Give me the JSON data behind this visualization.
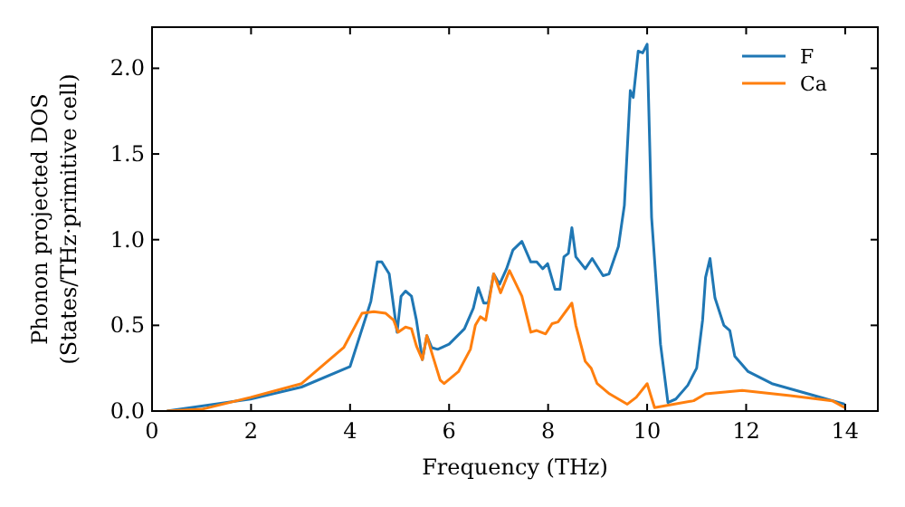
{
  "chart_data": {
    "type": "line",
    "xlabel": "Frequency (THz)",
    "ylabel": "Phonon projected DOS\n(States/THz·primitive cell)",
    "xlim": [
      0,
      14.66
    ],
    "ylim": [
      0,
      2.24
    ],
    "xticks": [
      0,
      2,
      4,
      6,
      8,
      10,
      12,
      14
    ],
    "yticks": [
      {
        "value": 0,
        "label": "0.0"
      },
      {
        "value": 0.5,
        "label": "0.5"
      },
      {
        "value": 1,
        "label": "1.0"
      },
      {
        "value": 1.5,
        "label": "1.5"
      },
      {
        "value": 2,
        "label": "2.0"
      }
    ],
    "legend": "top right",
    "grid": false,
    "series": [
      {
        "name": "F",
        "color": "#1f77b4",
        "x": [
          0.3,
          1.99,
          3.02,
          4.0,
          4.42,
          4.55,
          4.64,
          4.79,
          4.95,
          5.03,
          5.12,
          5.24,
          5.34,
          5.46,
          5.55,
          5.65,
          5.77,
          6.0,
          6.31,
          6.49,
          6.59,
          6.7,
          6.79,
          6.9,
          7.02,
          7.16,
          7.29,
          7.47,
          7.65,
          7.77,
          7.89,
          7.99,
          8.14,
          8.24,
          8.32,
          8.41,
          8.48,
          8.56,
          8.75,
          8.89,
          9.11,
          9.23,
          9.42,
          9.54,
          9.66,
          9.72,
          9.82,
          9.91,
          10.0,
          10.09,
          10.27,
          10.42,
          10.58,
          10.82,
          11.0,
          11.12,
          11.18,
          11.27,
          11.37,
          11.55,
          11.67,
          11.77,
          12.04,
          12.52,
          13.38,
          13.99
        ],
        "values": [
          0,
          0.07,
          0.14,
          0.26,
          0.64,
          0.87,
          0.87,
          0.8,
          0.46,
          0.67,
          0.7,
          0.67,
          0.53,
          0.3,
          0.44,
          0.37,
          0.36,
          0.39,
          0.48,
          0.6,
          0.72,
          0.63,
          0.63,
          0.8,
          0.74,
          0.83,
          0.94,
          0.99,
          0.87,
          0.87,
          0.83,
          0.86,
          0.71,
          0.71,
          0.9,
          0.92,
          1.07,
          0.9,
          0.83,
          0.89,
          0.79,
          0.8,
          0.96,
          1.2,
          1.87,
          1.83,
          2.1,
          2.09,
          2.14,
          1.13,
          0.39,
          0.05,
          0.07,
          0.15,
          0.25,
          0.53,
          0.78,
          0.89,
          0.66,
          0.5,
          0.47,
          0.32,
          0.23,
          0.16,
          0.09,
          0.04
        ]
      },
      {
        "name": "Ca",
        "color": "#ff7f0e",
        "x": [
          0.3,
          1,
          1.99,
          3.02,
          3.87,
          4.24,
          4.48,
          4.72,
          4.88,
          4.97,
          5.12,
          5.24,
          5.34,
          5.46,
          5.55,
          5.65,
          5.82,
          5.9,
          6.19,
          6.43,
          6.53,
          6.63,
          6.74,
          6.82,
          6.9,
          7.04,
          7.22,
          7.47,
          7.65,
          7.77,
          7.95,
          8.08,
          8.2,
          8.48,
          8.56,
          8.75,
          8.87,
          8.99,
          9.24,
          9.6,
          9.78,
          10.0,
          10.15,
          10.94,
          11.18,
          11.92,
          12.89,
          13.74,
          13.99
        ],
        "values": [
          0,
          0.01,
          0.08,
          0.16,
          0.37,
          0.57,
          0.58,
          0.57,
          0.53,
          0.46,
          0.49,
          0.48,
          0.38,
          0.3,
          0.44,
          0.34,
          0.18,
          0.16,
          0.23,
          0.36,
          0.5,
          0.55,
          0.53,
          0.66,
          0.8,
          0.69,
          0.82,
          0.67,
          0.46,
          0.47,
          0.45,
          0.51,
          0.52,
          0.63,
          0.5,
          0.29,
          0.25,
          0.16,
          0.1,
          0.04,
          0.08,
          0.16,
          0.02,
          0.06,
          0.1,
          0.12,
          0.09,
          0.06,
          0.02
        ]
      }
    ]
  }
}
